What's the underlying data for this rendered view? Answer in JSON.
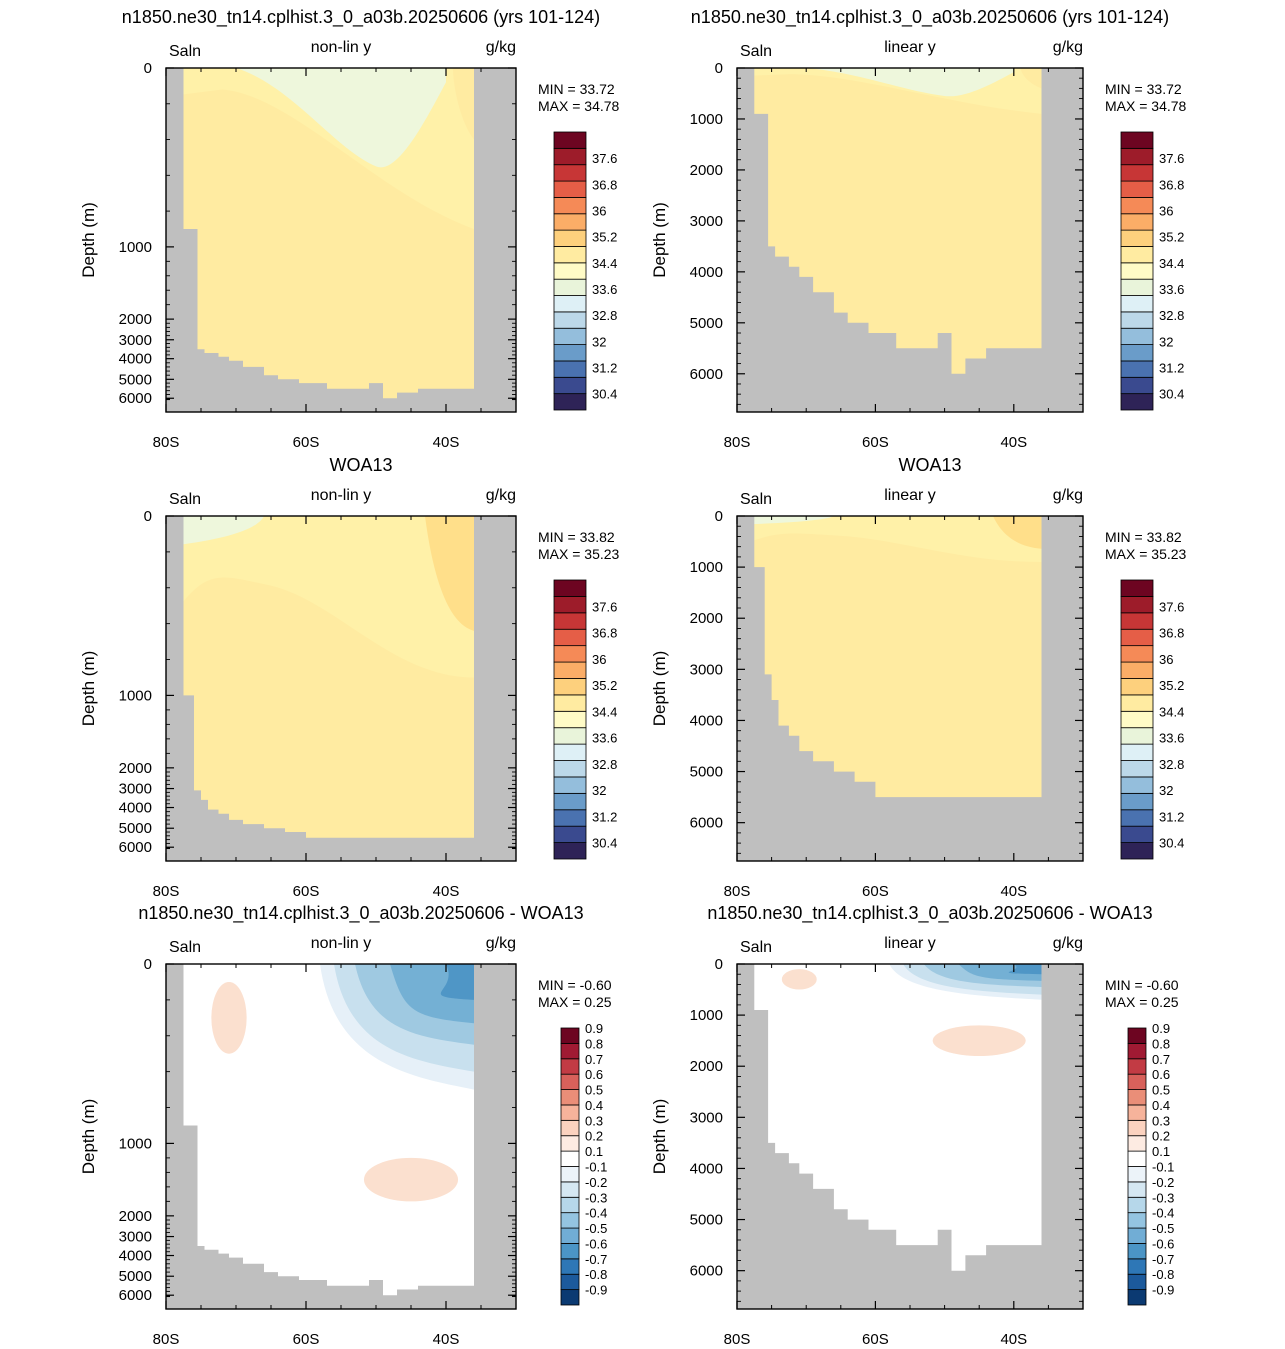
{
  "colors": {
    "land": "#bfbfbf",
    "salinity_fill_low": "#fff1a8",
    "salinity_fill_mid": "#ffeba1",
    "salinity_fill_high": "#ffdf8a",
    "salinity_fill_fresh": "#eef7dc",
    "diff_positive": "#fbe0cf",
    "diff_positive_strong": "#f4b49a",
    "diff_negative_1": "#e6f0f8",
    "diff_negative_2": "#c8e0ee",
    "diff_negative_3": "#9fc9e1",
    "diff_negative_4": "#74b0d4",
    "diff_negative_5": "#4f96c6"
  },
  "salinity_colorbar": {
    "colors": [
      "#2e2357",
      "#3a4a8f",
      "#4a72b0",
      "#6a9cc9",
      "#94bedc",
      "#bcd8e9",
      "#def0f6",
      "#e9f4da",
      "#fffbc6",
      "#ffeba1",
      "#fdd07d",
      "#fbad67",
      "#f58a57",
      "#e55e47",
      "#c73636",
      "#9d1c2a",
      "#6d0521"
    ],
    "labels": [
      "30.4",
      "31.2",
      "32",
      "32.8",
      "33.6",
      "34.4",
      "35.2",
      "36",
      "36.8",
      "37.6"
    ]
  },
  "diff_colorbar": {
    "colors": [
      "#0b3a72",
      "#1c5a9c",
      "#2e77b6",
      "#4b95c6",
      "#71add5",
      "#94c4e1",
      "#b6d7ea",
      "#d5e7f2",
      "#ecf3f9",
      "#ffffff",
      "#fdebe2",
      "#fbd2bf",
      "#f6b39b",
      "#ea8e78",
      "#d8615b",
      "#c23b44",
      "#a01a33",
      "#6d0521"
    ],
    "labels": [
      "-0.9",
      "-0.8",
      "-0.7",
      "-0.6",
      "-0.5",
      "-0.4",
      "-0.3",
      "-0.2",
      "-0.1",
      "0.1",
      "0.2",
      "0.3",
      "0.4",
      "0.5",
      "0.6",
      "0.7",
      "0.8",
      "0.9"
    ]
  },
  "chart_data": [
    {
      "type": "heatmap",
      "title": "n1850.ne30_tn14.cplhist.3_0_a03b.20250606 (yrs 101-124)",
      "left_label": "Saln",
      "center_label": "non-lin y",
      "right_label": "g/kg",
      "ylabel": "Depth (m)",
      "x_ticks": [
        "80S",
        "60S",
        "40S"
      ],
      "y_ticks": [
        "0",
        "1000",
        "2000",
        "3000",
        "4000",
        "5000",
        "6000"
      ],
      "min_label": "MIN =  33.72",
      "max_label": "MAX =  34.78",
      "xlim": [
        -80,
        -30
      ],
      "y_scale": "non-linear",
      "colorbar": "salinity"
    },
    {
      "type": "heatmap",
      "title": "n1850.ne30_tn14.cplhist.3_0_a03b.20250606 (yrs 101-124)",
      "left_label": "Saln",
      "center_label": "linear y",
      "right_label": "g/kg",
      "ylabel": "Depth (m)",
      "x_ticks": [
        "80S",
        "60S",
        "40S"
      ],
      "y_ticks": [
        "0",
        "1000",
        "2000",
        "3000",
        "4000",
        "5000",
        "6000"
      ],
      "min_label": "MIN =  33.72",
      "max_label": "MAX =  34.78",
      "xlim": [
        -80,
        -30
      ],
      "ylim": [
        0,
        6750
      ],
      "colorbar": "salinity"
    },
    {
      "type": "heatmap",
      "title": "WOA13",
      "left_label": "Saln",
      "center_label": "non-lin y",
      "right_label": "g/kg",
      "ylabel": "Depth (m)",
      "x_ticks": [
        "80S",
        "60S",
        "40S"
      ],
      "y_ticks": [
        "0",
        "1000",
        "2000",
        "3000",
        "4000",
        "5000",
        "6000"
      ],
      "min_label": "MIN =  33.82",
      "max_label": "MAX =  35.23",
      "xlim": [
        -80,
        -30
      ],
      "y_scale": "non-linear",
      "colorbar": "salinity"
    },
    {
      "type": "heatmap",
      "title": "WOA13",
      "left_label": "Saln",
      "center_label": "linear y",
      "right_label": "g/kg",
      "ylabel": "Depth (m)",
      "x_ticks": [
        "80S",
        "60S",
        "40S"
      ],
      "y_ticks": [
        "0",
        "1000",
        "2000",
        "3000",
        "4000",
        "5000",
        "6000"
      ],
      "min_label": "MIN =  33.82",
      "max_label": "MAX =  35.23",
      "xlim": [
        -80,
        -30
      ],
      "ylim": [
        0,
        6750
      ],
      "colorbar": "salinity"
    },
    {
      "type": "heatmap",
      "title": "n1850.ne30_tn14.cplhist.3_0_a03b.20250606 - WOA13",
      "left_label": "Saln",
      "center_label": "non-lin y",
      "right_label": "g/kg",
      "ylabel": "Depth (m)",
      "x_ticks": [
        "80S",
        "60S",
        "40S"
      ],
      "y_ticks": [
        "0",
        "1000",
        "2000",
        "3000",
        "4000",
        "5000",
        "6000"
      ],
      "min_label": "MIN =  -0.60",
      "max_label": "MAX =    0.25",
      "xlim": [
        -80,
        -30
      ],
      "y_scale": "non-linear",
      "colorbar": "diff"
    },
    {
      "type": "heatmap",
      "title": "n1850.ne30_tn14.cplhist.3_0_a03b.20250606 - WOA13",
      "left_label": "Saln",
      "center_label": "linear y",
      "right_label": "g/kg",
      "ylabel": "Depth (m)",
      "x_ticks": [
        "80S",
        "60S",
        "40S"
      ],
      "y_ticks": [
        "0",
        "1000",
        "2000",
        "3000",
        "4000",
        "5000",
        "6000"
      ],
      "min_label": "MIN =  -0.60",
      "max_label": "MAX =    0.25",
      "xlim": [
        -80,
        -30
      ],
      "ylim": [
        0,
        6750
      ],
      "colorbar": "diff"
    }
  ]
}
